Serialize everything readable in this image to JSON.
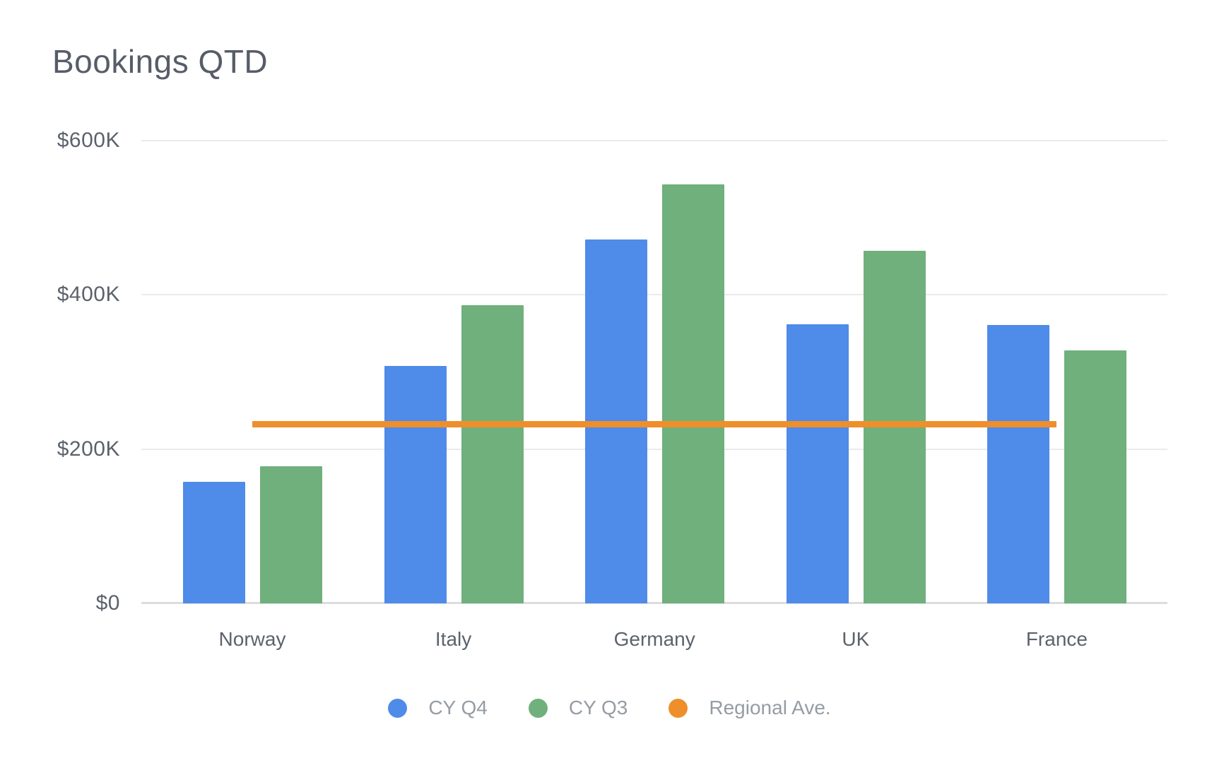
{
  "chart_data": {
    "type": "bar",
    "title": "Bookings QTD",
    "categories": [
      "Norway",
      "Italy",
      "Germany",
      "UK",
      "France"
    ],
    "series": [
      {
        "name": "CY Q4",
        "color": "#4f8be8",
        "values_k": [
          158,
          308,
          472,
          362,
          361
        ]
      },
      {
        "name": "CY Q3",
        "color": "#6fb07c",
        "values_k": [
          178,
          387,
          543,
          457,
          328
        ]
      }
    ],
    "reference_line": {
      "name": "Regional Ave.",
      "color": "#ee8f2b",
      "value_k": 232
    },
    "y_axis": {
      "max_k": 600,
      "ticks": [
        {
          "label": "$0",
          "value_k": 0
        },
        {
          "label": "$200K",
          "value_k": 200
        },
        {
          "label": "$400K",
          "value_k": 400
        },
        {
          "label": "$600K",
          "value_k": 600
        }
      ]
    },
    "value_format": "$ thousands (K)",
    "grid": true,
    "legend_position": "bottom"
  },
  "colors": {
    "background": "#ffffff",
    "title_text": "#575d68",
    "axis_text": "#5c626c",
    "legend_text": "#969ca4",
    "gridline": "#ebebeb",
    "baseline": "#dcdcdc"
  }
}
